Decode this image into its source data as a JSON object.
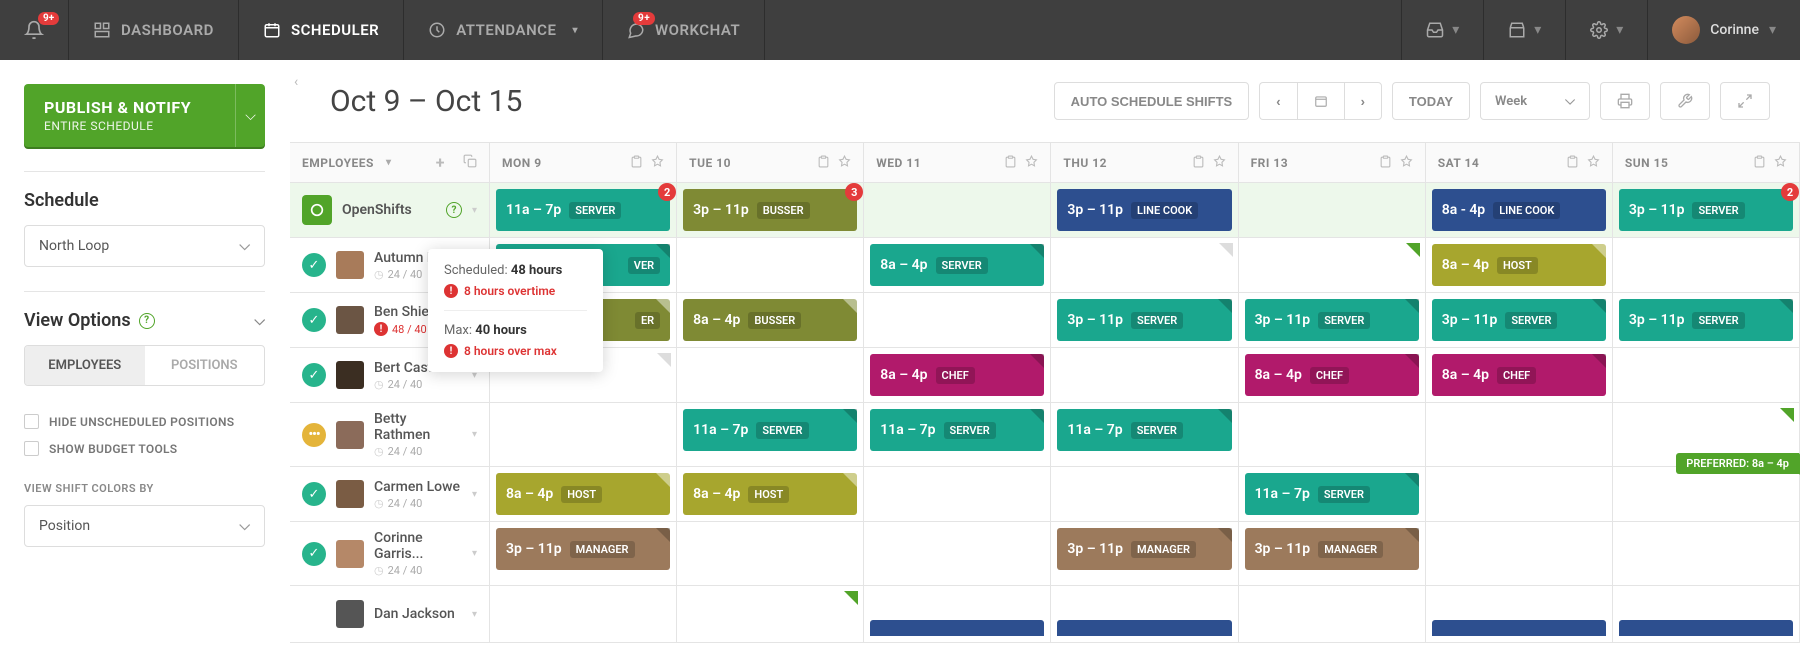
{
  "topnav": {
    "bell_badge": "9+",
    "items": [
      {
        "label": "DASHBOARD",
        "active": false,
        "icon": "dashboard"
      },
      {
        "label": "SCHEDULER",
        "active": true,
        "icon": "calendar"
      },
      {
        "label": "ATTENDANCE",
        "active": false,
        "icon": "clock",
        "chev": true
      },
      {
        "label": "WORKCHAT",
        "active": false,
        "icon": "chat",
        "badge": "9+"
      }
    ],
    "user_name": "Corinne"
  },
  "sidebar": {
    "publish_title": "PUBLISH & NOTIFY",
    "publish_sub": "ENTIRE SCHEDULE",
    "schedule_h": "Schedule",
    "schedule_value": "North Loop",
    "viewopts_h": "View Options",
    "toggles": {
      "a": "EMPLOYEES",
      "b": "POSITIONS"
    },
    "chk1": "HIDE UNSCHEDULED POSITIONS",
    "chk2": "SHOW BUDGET TOOLS",
    "colors_label": "VIEW SHIFT COLORS BY",
    "colors_value": "Position"
  },
  "toolbar": {
    "range": "Oct 9 – Oct 15",
    "autoschedule": "AUTO SCHEDULE SHIFTS",
    "today": "TODAY",
    "view": "Week"
  },
  "colors": {
    "server": "#1aa78e",
    "busser": "#7f8a34",
    "linecook": "#2d4f8f",
    "host": "#a7a62e",
    "chef": "#b11a6b",
    "manager": "#9c7a5c"
  },
  "days": [
    "MON 9",
    "TUE 10",
    "WED 11",
    "THU 12",
    "FRI 13",
    "SAT 14",
    "SUN 15"
  ],
  "employees_header": "EMPLOYEES",
  "openshifts_label": "OpenShifts",
  "openshifts": [
    {
      "day": 0,
      "time": "11a – 7p",
      "role": "SERVER",
      "color": "server",
      "count": "2"
    },
    {
      "day": 1,
      "time": "3p – 11p",
      "role": "BUSSER",
      "color": "busser",
      "count": "3"
    },
    {
      "day": 3,
      "time": "3p – 11p",
      "role": "LINE COOK",
      "color": "linecook"
    },
    {
      "day": 5,
      "time": "8a - 4p",
      "role": "LINE COOK",
      "color": "linecook"
    },
    {
      "day": 6,
      "time": "3p – 11p",
      "role": "SERVER",
      "color": "server",
      "count": "2"
    }
  ],
  "employees": [
    {
      "name": "Autumn Ro…",
      "sub": "24 / 40",
      "status": "green",
      "avatar": "#a87b5a",
      "shifts": [
        {
          "day": 0,
          "time": "",
          "role": "VER",
          "color": "server",
          "ragged": true
        },
        {
          "day": 2,
          "time": "8a – 4p",
          "role": "SERVER",
          "color": "server"
        },
        {
          "day": 5,
          "time": "8a – 4p",
          "role": "HOST",
          "color": "host"
        }
      ],
      "corners": [
        {
          "day": 3,
          "type": "grey"
        },
        {
          "day": 4,
          "type": "green"
        }
      ]
    },
    {
      "name": "Ben Shields",
      "sub": "48 / 40",
      "status": "green",
      "alert": true,
      "avatar": "#6b5544",
      "shifts": [
        {
          "day": 0,
          "time": "",
          "role": "ER",
          "color": "busser",
          "ragged": true
        },
        {
          "day": 1,
          "time": "8a – 4p",
          "role": "BUSSER",
          "color": "busser"
        },
        {
          "day": 3,
          "time": "3p – 11p",
          "role": "SERVER",
          "color": "server"
        },
        {
          "day": 4,
          "time": "3p – 11p",
          "role": "SERVER",
          "color": "server"
        },
        {
          "day": 5,
          "time": "3p – 11p",
          "role": "SERVER",
          "color": "server"
        },
        {
          "day": 6,
          "time": "3p – 11p",
          "role": "SERVER",
          "color": "server"
        }
      ]
    },
    {
      "name": "Bert Castro",
      "sub": "24 / 40",
      "status": "green",
      "avatar": "#3b2e22",
      "shifts": [
        {
          "day": 2,
          "time": "8a – 4p",
          "role": "CHEF",
          "color": "chef"
        },
        {
          "day": 4,
          "time": "8a – 4p",
          "role": "CHEF",
          "color": "chef"
        },
        {
          "day": 5,
          "time": "8a – 4p",
          "role": "CHEF",
          "color": "chef"
        }
      ],
      "corners": [
        {
          "day": 0,
          "type": "grey"
        }
      ]
    },
    {
      "name": "Betty Rathmen",
      "sub": "24 / 40",
      "status": "yellow",
      "avatar": "#8b6b5a",
      "shifts": [
        {
          "day": 1,
          "time": "11a – 7p",
          "role": "SERVER",
          "color": "server"
        },
        {
          "day": 2,
          "time": "11a – 7p",
          "role": "SERVER",
          "color": "server"
        },
        {
          "day": 3,
          "time": "11a – 7p",
          "role": "SERVER",
          "color": "server"
        }
      ],
      "corners": [
        {
          "day": 6,
          "type": "green"
        }
      ]
    },
    {
      "name": "Carmen Lowe",
      "sub": "24 / 40",
      "status": "green",
      "avatar": "#7a5c44",
      "shifts": [
        {
          "day": 0,
          "time": "8a – 4p",
          "role": "HOST",
          "color": "host"
        },
        {
          "day": 1,
          "time": "8a – 4p",
          "role": "HOST",
          "color": "host"
        },
        {
          "day": 4,
          "time": "11a – 7p",
          "role": "SERVER",
          "color": "server"
        }
      ],
      "preferred": {
        "day": 6,
        "label": "PREFERRED: 8a – 4p"
      }
    },
    {
      "name": "Corinne Garris...",
      "sub": "24 / 40",
      "status": "green",
      "avatar": "#b58868",
      "shifts": [
        {
          "day": 0,
          "time": "3p – 11p",
          "role": "MANAGER",
          "color": "manager"
        },
        {
          "day": 3,
          "time": "3p – 11p",
          "role": "MANAGER",
          "color": "manager"
        },
        {
          "day": 4,
          "time": "3p – 11p",
          "role": "MANAGER",
          "color": "manager"
        }
      ]
    },
    {
      "name": "Dan Jackson",
      "sub": "",
      "status": "",
      "avatar": "#555",
      "shifts": [
        {
          "day": 2,
          "time": "",
          "role": "",
          "color": "linecook",
          "partial": true
        },
        {
          "day": 3,
          "time": "",
          "role": "",
          "color": "linecook",
          "partial": true
        },
        {
          "day": 5,
          "time": "",
          "role": "",
          "color": "linecook",
          "partial": true
        },
        {
          "day": 6,
          "time": "",
          "role": "",
          "color": "linecook",
          "partial": true
        }
      ],
      "corners": [
        {
          "day": 1,
          "type": "green"
        }
      ]
    }
  ],
  "tooltip": {
    "scheduled_label": "Scheduled:",
    "scheduled_value": "48 hours",
    "overtime": "8 hours overtime",
    "max_label": "Max:",
    "max_value": "40 hours",
    "overmax": "8 hours over max"
  }
}
